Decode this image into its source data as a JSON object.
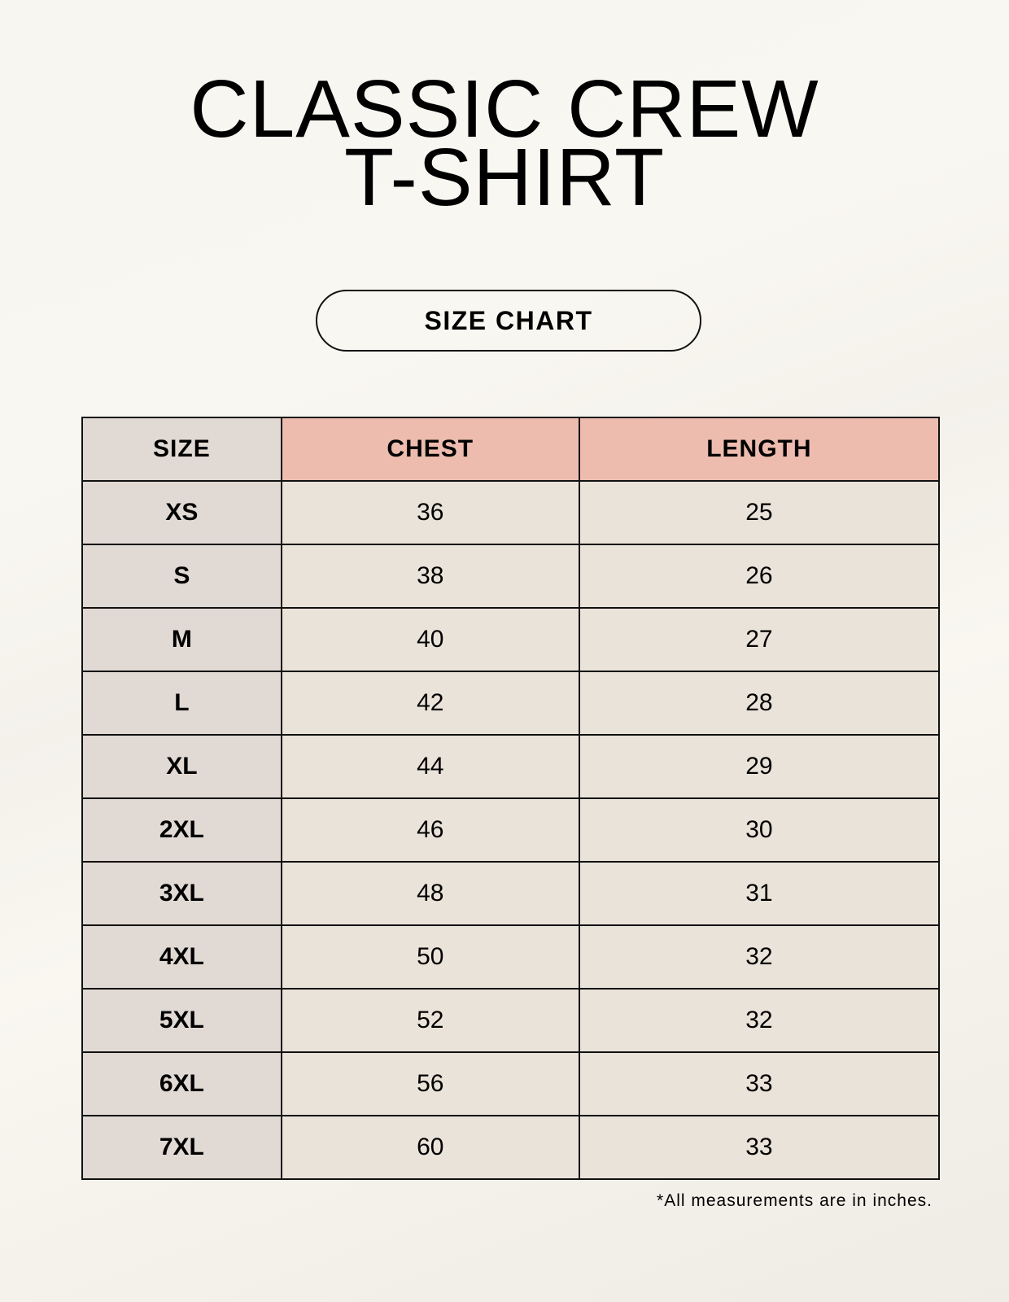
{
  "title": {
    "line1": "CLASSIC CREW",
    "line2": "T-SHIRT"
  },
  "badge": "SIZE CHART",
  "table": {
    "headers": [
      "SIZE",
      "CHEST",
      "LENGTH"
    ],
    "rows": [
      [
        "XS",
        "36",
        "25"
      ],
      [
        "S",
        "38",
        "26"
      ],
      [
        "M",
        "40",
        "27"
      ],
      [
        "L",
        "42",
        "28"
      ],
      [
        "XL",
        "44",
        "29"
      ],
      [
        "2XL",
        "46",
        "30"
      ],
      [
        "3XL",
        "48",
        "31"
      ],
      [
        "4XL",
        "50",
        "32"
      ],
      [
        "5XL",
        "52",
        "32"
      ],
      [
        "6XL",
        "56",
        "33"
      ],
      [
        "7XL",
        "60",
        "33"
      ]
    ]
  },
  "note": "*All measurements are in inches.",
  "colors": {
    "size_column": "#e1d9d3",
    "header_accent": "#edbcae",
    "value_cells": "#eae3d9"
  }
}
